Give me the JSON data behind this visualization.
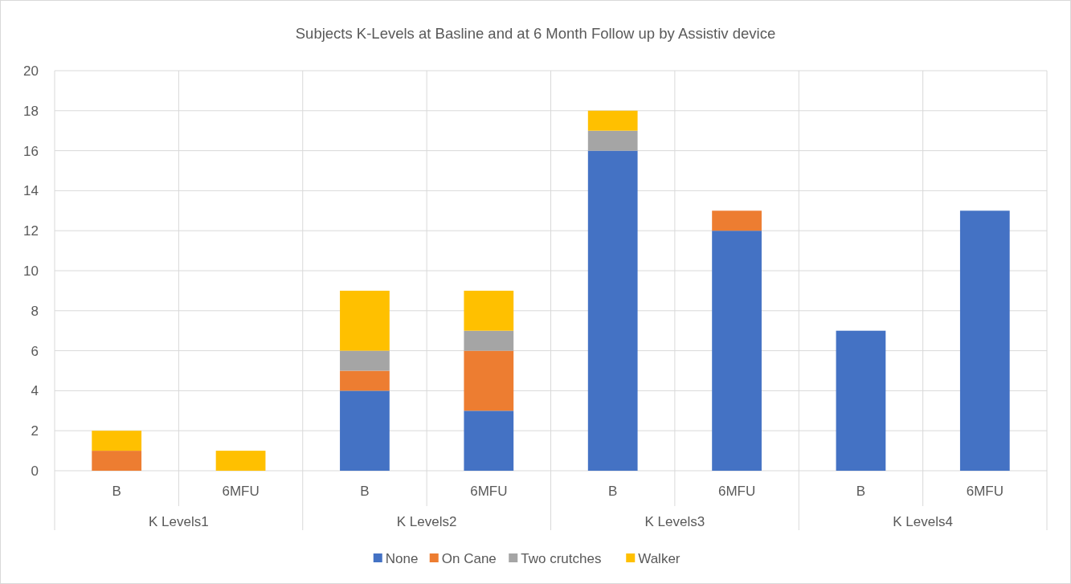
{
  "chart_data": {
    "type": "bar",
    "title": "Subjects K-Levels at Basline and at 6 Month Follow up by Assistiv device",
    "categories": [
      "B",
      "6MFU",
      "B",
      "6MFU",
      "B",
      "6MFU",
      "B",
      "6MFU"
    ],
    "annotations": [
      "K Levels1",
      "K Levels2",
      "K Levels3",
      "K Levels4"
    ],
    "stacked": true,
    "series": [
      {
        "name": "None",
        "color": "#4472c4",
        "values": [
          0,
          0,
          4,
          3,
          16,
          12,
          7,
          13
        ]
      },
      {
        "name": "On Cane",
        "color": "#ed7d31",
        "values": [
          1,
          0,
          1,
          3,
          0,
          1,
          0,
          0
        ]
      },
      {
        "name": "Two crutches",
        "color": "#a5a5a5",
        "values": [
          0,
          0,
          1,
          1,
          1,
          0,
          0,
          0
        ]
      },
      {
        "name": "Walker",
        "color": "#ffc000",
        "values": [
          1,
          1,
          3,
          2,
          1,
          0,
          0,
          0
        ]
      }
    ],
    "ylim": [
      0,
      20
    ],
    "yticks": [
      0,
      2,
      4,
      6,
      8,
      10,
      12,
      14,
      16,
      18,
      20
    ],
    "grid": "y",
    "legend": "bottom"
  }
}
